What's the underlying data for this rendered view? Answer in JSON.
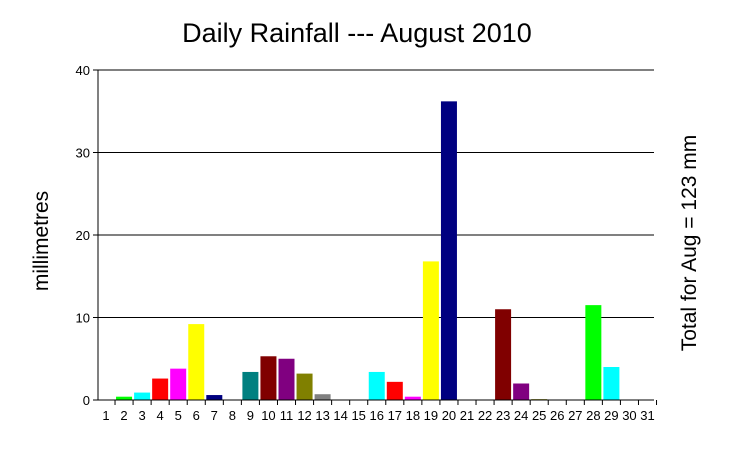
{
  "chart_data": {
    "type": "bar",
    "title": "Daily Rainfall --- August 2010",
    "xlabel": "",
    "ylabel": "millimetres",
    "right_label": "Total for Aug = 123 mm",
    "ylim": [
      0,
      40
    ],
    "yticks": [
      "0",
      "10",
      "20",
      "30",
      "40"
    ],
    "grid": "horizontal",
    "legend": "none",
    "categories": [
      "1",
      "2",
      "3",
      "4",
      "5",
      "6",
      "7",
      "8",
      "9",
      "10",
      "11",
      "12",
      "13",
      "14",
      "15",
      "16",
      "17",
      "18",
      "19",
      "20",
      "21",
      "22",
      "23",
      "24",
      "25",
      "26",
      "27",
      "28",
      "29",
      "30",
      "31"
    ],
    "values": [
      0,
      0.4,
      0.9,
      2.6,
      3.8,
      9.2,
      0.6,
      0,
      3.4,
      5.3,
      5.0,
      3.2,
      0.7,
      0,
      0,
      3.4,
      2.2,
      0.4,
      16.8,
      36.2,
      0,
      0,
      11.0,
      2.0,
      0.1,
      0,
      0,
      11.5,
      4.0,
      0,
      0
    ],
    "colors": [
      "#ffffff",
      "#00ff00",
      "#00ffff",
      "#ff0000",
      "#ff00ff",
      "#ffff00",
      "#000080",
      "#ffffff",
      "#008080",
      "#800000",
      "#800080",
      "#808000",
      "#808080",
      "#ffffff",
      "#ffffff",
      "#00ffff",
      "#ff0000",
      "#ff00ff",
      "#ffff00",
      "#000080",
      "#ffffff",
      "#ffffff",
      "#800000",
      "#800080",
      "#808000",
      "#ffffff",
      "#ffffff",
      "#00ff00",
      "#00ffff",
      "#ffffff",
      "#ffffff"
    ]
  }
}
